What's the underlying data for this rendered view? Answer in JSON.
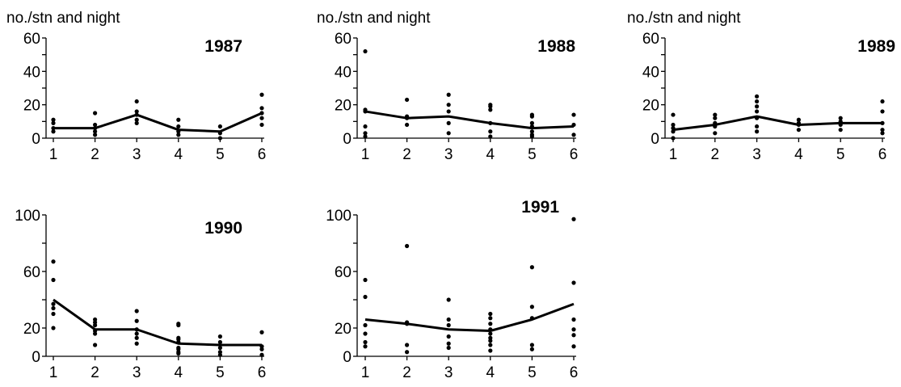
{
  "chart_data": [
    {
      "type": "line",
      "title": "1987",
      "ylabel": "no./stn and night",
      "categories": [
        "1",
        "2",
        "3",
        "4",
        "5",
        "6"
      ],
      "ylim": [
        0,
        60
      ],
      "y_ticks": [
        "60",
        "40",
        "20",
        "0"
      ],
      "mean_line": [
        6,
        6,
        14,
        5,
        4,
        15
      ],
      "points": [
        [
          4,
          6,
          9,
          11
        ],
        [
          2,
          4,
          6,
          8,
          15
        ],
        [
          9,
          11,
          14,
          16,
          22
        ],
        [
          2,
          4,
          7,
          11
        ],
        [
          0,
          3,
          7
        ],
        [
          8,
          12,
          15,
          18,
          26
        ]
      ]
    },
    {
      "type": "line",
      "title": "1988",
      "ylabel": "no./stn and night",
      "categories": [
        "1",
        "2",
        "3",
        "4",
        "5",
        "6"
      ],
      "ylim": [
        0,
        60
      ],
      "y_ticks": [
        "60",
        "40",
        "20",
        "0"
      ],
      "mean_line": [
        16,
        12,
        13,
        9,
        6,
        7
      ],
      "points": [
        [
          1,
          3,
          7,
          16,
          17,
          52
        ],
        [
          8,
          12,
          13,
          23
        ],
        [
          3,
          9,
          16,
          20,
          26
        ],
        [
          1,
          4,
          9,
          17,
          19,
          20
        ],
        [
          1,
          2,
          4,
          7,
          9,
          13,
          14
        ],
        [
          2,
          8,
          14
        ]
      ]
    },
    {
      "type": "line",
      "title": "1989",
      "ylabel": "no./stn and night",
      "categories": [
        "1",
        "2",
        "3",
        "4",
        "5",
        "6"
      ],
      "ylim": [
        0,
        60
      ],
      "y_ticks": [
        "60",
        "40",
        "20",
        "0"
      ],
      "mean_line": [
        5,
        8,
        13,
        8,
        9,
        9
      ],
      "points": [
        [
          0,
          4,
          6,
          8,
          14
        ],
        [
          3,
          7,
          9,
          12,
          14
        ],
        [
          4,
          7,
          12,
          16,
          19,
          22,
          25
        ],
        [
          5,
          8,
          9,
          11
        ],
        [
          5,
          8,
          10,
          12
        ],
        [
          3,
          5,
          9,
          16,
          22
        ]
      ]
    },
    {
      "type": "line",
      "title": "1990",
      "ylabel": "",
      "categories": [
        "1",
        "2",
        "3",
        "4",
        "5",
        "6"
      ],
      "ylim": [
        0,
        100
      ],
      "y_ticks": [
        "100",
        "60",
        "20",
        "0"
      ],
      "mean_line": [
        40,
        19,
        19,
        9,
        8,
        8
      ],
      "points": [
        [
          20,
          30,
          34,
          37,
          54,
          67
        ],
        [
          8,
          16,
          18,
          22,
          24,
          26
        ],
        [
          9,
          13,
          16,
          19,
          25,
          32
        ],
        [
          2,
          3,
          5,
          6,
          10,
          12,
          13,
          22,
          23
        ],
        [
          1,
          3,
          6,
          10,
          14
        ],
        [
          1,
          5,
          7,
          17
        ]
      ]
    },
    {
      "type": "line",
      "title": "1991",
      "ylabel": "",
      "categories": [
        "1",
        "2",
        "3",
        "4",
        "5",
        "6"
      ],
      "ylim": [
        0,
        100
      ],
      "y_ticks": [
        "100",
        "60",
        "20",
        "0"
      ],
      "mean_line": [
        26,
        23,
        19,
        18,
        26,
        37
      ],
      "points": [
        [
          7,
          10,
          16,
          22,
          42,
          54
        ],
        [
          3,
          8,
          23,
          24,
          78
        ],
        [
          6,
          9,
          14,
          22,
          26,
          40
        ],
        [
          4,
          8,
          11,
          13,
          16,
          19,
          23,
          27,
          30
        ],
        [
          5,
          8,
          27,
          35,
          63
        ],
        [
          7,
          15,
          19,
          26,
          52,
          97
        ]
      ]
    }
  ]
}
